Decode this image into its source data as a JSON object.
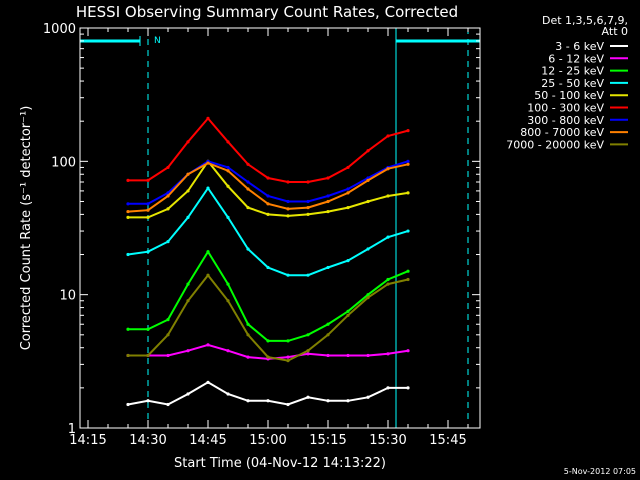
{
  "chart_data": {
    "type": "line",
    "title": "HESSI Observing Summary Count Rates, Corrected",
    "xlabel": "Start Time (04-Nov-12 14:13:22)",
    "ylabel": "Corrected Count Rate (s⁻¹ detector⁻¹)",
    "yscale": "log",
    "ylim": [
      1,
      1000
    ],
    "xlim": [
      "14:13",
      "15:53"
    ],
    "x_ticks": [
      "14:15",
      "14:30",
      "14:45",
      "15:00",
      "15:15",
      "15:30",
      "15:45"
    ],
    "y_ticks": [
      "1",
      "10",
      "100",
      "1000"
    ],
    "legend_header": [
      "Det 1,3,5,6,7,9,",
      "Att 0"
    ],
    "legend_position": "top-right, outside plot",
    "footer": "5-Nov-2012 07:05",
    "annotations": {
      "night_label": "N",
      "night_bar_1": [
        "14:13",
        "14:28"
      ],
      "night_bar_2": [
        "15:32",
        "15:53"
      ],
      "dashed_markers": [
        "14:30",
        "15:50"
      ],
      "solid_marker": "15:32"
    },
    "x": [
      "14:25",
      "14:30",
      "14:35",
      "14:40",
      "14:45",
      "14:50",
      "14:55",
      "15:00",
      "15:05",
      "15:10",
      "15:15",
      "15:20",
      "15:25",
      "15:30",
      "15:35"
    ],
    "series": [
      {
        "name": "3 - 6 keV",
        "color": "#ffffff",
        "values": [
          1.5,
          1.6,
          1.5,
          1.8,
          2.2,
          1.8,
          1.6,
          1.6,
          1.5,
          1.7,
          1.6,
          1.6,
          1.7,
          2.0,
          2.0
        ]
      },
      {
        "name": "6 - 12 keV",
        "color": "#ff00ff",
        "values": [
          3.5,
          3.5,
          3.5,
          3.8,
          4.2,
          3.8,
          3.4,
          3.3,
          3.4,
          3.6,
          3.5,
          3.5,
          3.5,
          3.6,
          3.8
        ]
      },
      {
        "name": "12 - 25 keV",
        "color": "#00ff00",
        "values": [
          5.5,
          5.5,
          6.5,
          12,
          21,
          12,
          6.0,
          4.5,
          4.5,
          5.0,
          6.0,
          7.5,
          10,
          13,
          15
        ]
      },
      {
        "name": "25 - 50 keV",
        "color": "#00ffff",
        "values": [
          20,
          21,
          25,
          38,
          63,
          38,
          22,
          16,
          14,
          14,
          16,
          18,
          22,
          27,
          30
        ]
      },
      {
        "name": "50 - 100 keV",
        "color": "#e6e600",
        "values": [
          38,
          38,
          44,
          60,
          100,
          65,
          45,
          40,
          39,
          40,
          42,
          45,
          50,
          55,
          58
        ]
      },
      {
        "name": "100 - 300 keV",
        "color": "#ff0000",
        "values": [
          72,
          72,
          90,
          140,
          210,
          140,
          95,
          75,
          70,
          70,
          75,
          90,
          120,
          155,
          170
        ]
      },
      {
        "name": "300 - 800 keV",
        "color": "#0000ff",
        "values": [
          48,
          48,
          58,
          80,
          100,
          90,
          70,
          55,
          50,
          50,
          55,
          62,
          75,
          90,
          100
        ]
      },
      {
        "name": "800 - 7000 keV",
        "color": "#ff8000",
        "values": [
          42,
          43,
          55,
          80,
          97,
          85,
          62,
          48,
          44,
          45,
          50,
          58,
          72,
          88,
          95
        ]
      },
      {
        "name": "7000 - 20000 keV",
        "color": "#808000",
        "values": [
          3.5,
          3.5,
          5.0,
          9.0,
          14,
          9.0,
          5.0,
          3.4,
          3.2,
          3.8,
          5.0,
          7.0,
          9.5,
          12,
          13
        ]
      }
    ]
  }
}
